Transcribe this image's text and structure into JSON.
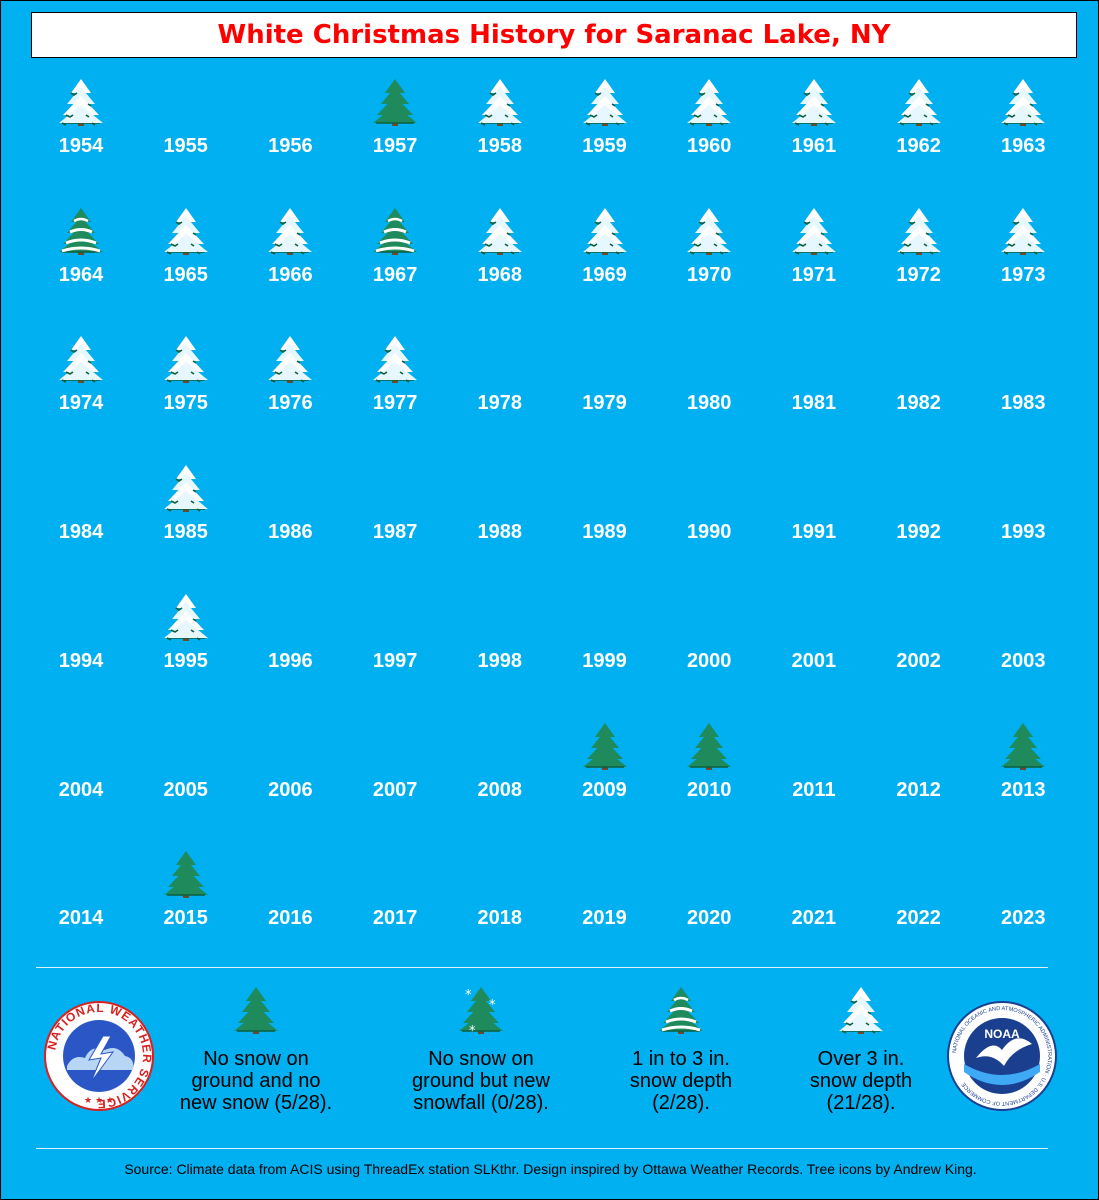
{
  "title": "White Christmas History for Saranac Lake, NY",
  "chart_data": {
    "type": "table",
    "title": "White Christmas History for Saranac Lake, NY",
    "categories": [
      "none",
      "nosnow",
      "newsnow",
      "depth1to3",
      "over3"
    ],
    "years": [
      {
        "year": "1954",
        "cat": "over3"
      },
      {
        "year": "1955",
        "cat": "none"
      },
      {
        "year": "1956",
        "cat": "none"
      },
      {
        "year": "1957",
        "cat": "nosnow"
      },
      {
        "year": "1958",
        "cat": "over3"
      },
      {
        "year": "1959",
        "cat": "over3"
      },
      {
        "year": "1960",
        "cat": "over3"
      },
      {
        "year": "1961",
        "cat": "over3"
      },
      {
        "year": "1962",
        "cat": "over3"
      },
      {
        "year": "1963",
        "cat": "over3"
      },
      {
        "year": "1964",
        "cat": "depth1to3"
      },
      {
        "year": "1965",
        "cat": "over3"
      },
      {
        "year": "1966",
        "cat": "over3"
      },
      {
        "year": "1967",
        "cat": "depth1to3"
      },
      {
        "year": "1968",
        "cat": "over3"
      },
      {
        "year": "1969",
        "cat": "over3"
      },
      {
        "year": "1970",
        "cat": "over3"
      },
      {
        "year": "1971",
        "cat": "over3"
      },
      {
        "year": "1972",
        "cat": "over3"
      },
      {
        "year": "1973",
        "cat": "over3"
      },
      {
        "year": "1974",
        "cat": "over3"
      },
      {
        "year": "1975",
        "cat": "over3"
      },
      {
        "year": "1976",
        "cat": "over3"
      },
      {
        "year": "1977",
        "cat": "over3"
      },
      {
        "year": "1978",
        "cat": "none"
      },
      {
        "year": "1979",
        "cat": "none"
      },
      {
        "year": "1980",
        "cat": "none"
      },
      {
        "year": "1981",
        "cat": "none"
      },
      {
        "year": "1982",
        "cat": "none"
      },
      {
        "year": "1983",
        "cat": "none"
      },
      {
        "year": "1984",
        "cat": "none"
      },
      {
        "year": "1985",
        "cat": "over3"
      },
      {
        "year": "1986",
        "cat": "none"
      },
      {
        "year": "1987",
        "cat": "none"
      },
      {
        "year": "1988",
        "cat": "none"
      },
      {
        "year": "1989",
        "cat": "none"
      },
      {
        "year": "1990",
        "cat": "none"
      },
      {
        "year": "1991",
        "cat": "none"
      },
      {
        "year": "1992",
        "cat": "none"
      },
      {
        "year": "1993",
        "cat": "none"
      },
      {
        "year": "1994",
        "cat": "none"
      },
      {
        "year": "1995",
        "cat": "over3"
      },
      {
        "year": "1996",
        "cat": "none"
      },
      {
        "year": "1997",
        "cat": "none"
      },
      {
        "year": "1998",
        "cat": "none"
      },
      {
        "year": "1999",
        "cat": "none"
      },
      {
        "year": "2000",
        "cat": "none"
      },
      {
        "year": "2001",
        "cat": "none"
      },
      {
        "year": "2002",
        "cat": "none"
      },
      {
        "year": "2003",
        "cat": "none"
      },
      {
        "year": "2004",
        "cat": "none"
      },
      {
        "year": "2005",
        "cat": "none"
      },
      {
        "year": "2006",
        "cat": "none"
      },
      {
        "year": "2007",
        "cat": "none"
      },
      {
        "year": "2008",
        "cat": "none"
      },
      {
        "year": "2009",
        "cat": "nosnow"
      },
      {
        "year": "2010",
        "cat": "nosnow"
      },
      {
        "year": "2011",
        "cat": "none"
      },
      {
        "year": "2012",
        "cat": "none"
      },
      {
        "year": "2013",
        "cat": "nosnow"
      },
      {
        "year": "2014",
        "cat": "none"
      },
      {
        "year": "2015",
        "cat": "nosnow"
      },
      {
        "year": "2016",
        "cat": "none"
      },
      {
        "year": "2017",
        "cat": "none"
      },
      {
        "year": "2018",
        "cat": "none"
      },
      {
        "year": "2019",
        "cat": "none"
      },
      {
        "year": "2020",
        "cat": "none"
      },
      {
        "year": "2021",
        "cat": "none"
      },
      {
        "year": "2022",
        "cat": "none"
      },
      {
        "year": "2023",
        "cat": "none"
      }
    ]
  },
  "legend": [
    {
      "cat": "nosnow",
      "text_lines": [
        "No snow on",
        "ground and no",
        "new snow (5/28)."
      ]
    },
    {
      "cat": "newsnow",
      "text_lines": [
        "No snow on",
        "ground but new",
        "snowfall (0/28)."
      ]
    },
    {
      "cat": "depth1to3",
      "text_lines": [
        "1 in to 3 in.",
        "snow depth",
        "(2/28)."
      ]
    },
    {
      "cat": "over3",
      "text_lines": [
        "Over 3 in.",
        "snow depth",
        "(21/28)."
      ]
    }
  ],
  "logos": {
    "nws": {
      "ring_text": "NATIONAL WEATHER SERVICE"
    },
    "noaa": {
      "center_text": "NOAA",
      "ring_text": "NATIONAL OCEANIC AND ATMOSPHERIC ADMINISTRATION · U.S. DEPARTMENT OF COMMERCE"
    }
  },
  "source": "Source: Climate data from ACIS using ThreadEx station SLKthr. Design inspired by Ottawa Weather Records. Tree icons by Andrew King.",
  "colors": {
    "background": "#00b0f0",
    "title": "#ff0000",
    "tree_green": "#1f8a5b",
    "tree_dark": "#0d5f3c",
    "snow": "#ffffff",
    "trunk": "#6b4a2b"
  }
}
